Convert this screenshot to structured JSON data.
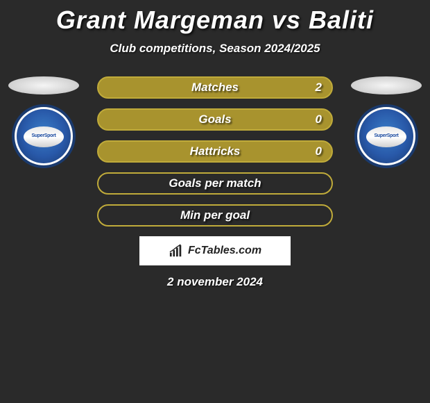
{
  "title": "Grant Margeman vs Baliti",
  "subtitle": "Club competitions, Season 2024/2025",
  "stats": [
    {
      "label": "Matches",
      "value_right": "2",
      "fill": "#a8932e",
      "border": "#c0ab3a"
    },
    {
      "label": "Goals",
      "value_right": "0",
      "fill": "#a8932e",
      "border": "#c0ab3a"
    },
    {
      "label": "Hattricks",
      "value_right": "0",
      "fill": "#a8932e",
      "border": "#c0ab3a"
    },
    {
      "label": "Goals per match",
      "value_right": "",
      "fill": "transparent",
      "border": "#c0ab3a"
    },
    {
      "label": "Min per goal",
      "value_right": "",
      "fill": "transparent",
      "border": "#c0ab3a"
    }
  ],
  "attribution": "FcTables.com",
  "date": "2 november 2024",
  "club_inner_text": "SuperSport",
  "colors": {
    "background": "#2a2a2a",
    "text": "#ffffff",
    "stat_fill": "#a8932e",
    "stat_border": "#c0ab3a",
    "logo_outer": "#1a3a6e",
    "logo_inner": "#2858a8"
  }
}
